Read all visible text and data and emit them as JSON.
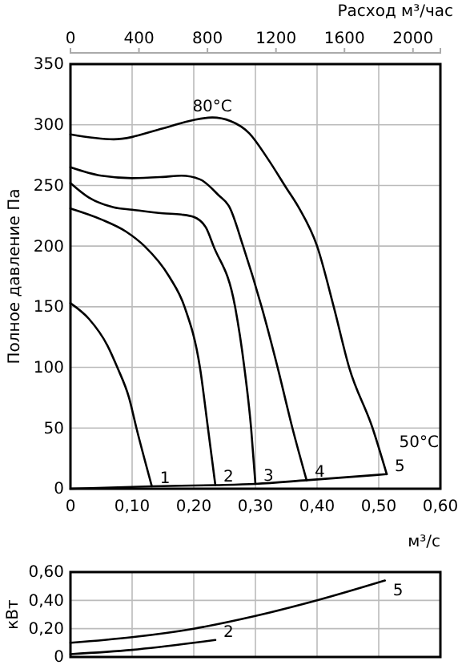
{
  "chart_data": [
    {
      "type": "line",
      "xlabel": "м³/с",
      "ylabel": "Полное давление Па",
      "x2label": "Расход м³/час",
      "xlim": [
        0,
        0.6
      ],
      "xticks": [
        0,
        {
          "value": 0.1,
          "label": "0,10"
        },
        {
          "value": 0.2,
          "label": "0,20"
        },
        {
          "value": 0.3,
          "label": "0,30"
        },
        {
          "value": 0.4,
          "label": "0,40"
        },
        {
          "value": 0.5,
          "label": "0,50"
        },
        {
          "value": 0.6,
          "label": "0,60"
        }
      ],
      "ylim": [
        0,
        350
      ],
      "yticks": [
        0,
        50,
        100,
        150,
        200,
        250,
        300,
        350
      ],
      "x2lim": [
        0,
        2160
      ],
      "x2ticks": [
        0,
        400,
        800,
        1200,
        1600,
        2000
      ],
      "grid": true,
      "marker": "none",
      "line_style": "solid",
      "series": [
        {
          "name": "1",
          "color": "#000000",
          "x": [
            0,
            0.03,
            0.06,
            0.076,
            0.095,
            0.107,
            0.132
          ],
          "values": [
            153,
            140,
            118,
            100,
            75,
            50,
            2
          ]
        },
        {
          "name": "2",
          "color": "#000000",
          "x": [
            0,
            0.05,
            0.09,
            0.12,
            0.16,
            0.185,
            0.21,
            0.223,
            0.235
          ],
          "values": [
            231,
            222,
            212,
            200,
            175,
            150,
            100,
            50,
            3
          ]
        },
        {
          "name": "3",
          "color": "#000000",
          "x": [
            0,
            0.03,
            0.07,
            0.1,
            0.15,
            0.18,
            0.2,
            0.22,
            0.232,
            0.267,
            0.282,
            0.293,
            0.3
          ],
          "values": [
            252,
            240,
            232,
            230,
            227,
            226,
            224,
            215,
            200,
            150,
            100,
            50,
            4
          ]
        },
        {
          "name": "4",
          "color": "#000000",
          "x": [
            0,
            0.05,
            0.1,
            0.15,
            0.18,
            0.21,
            0.24,
            0.258,
            0.28,
            0.31,
            0.336,
            0.36,
            0.383
          ],
          "values": [
            265,
            258,
            256,
            257,
            258,
            255,
            242,
            232,
            200,
            150,
            100,
            50,
            7
          ]
        },
        {
          "name": "5",
          "color": "#000000",
          "x": [
            0,
            0.07,
            0.15,
            0.2,
            0.23,
            0.26,
            0.29,
            0.32,
            0.35,
            0.37,
            0.4,
            0.427,
            0.452,
            0.49,
            0.513
          ],
          "values": [
            292,
            288,
            297,
            304,
            306,
            303,
            293,
            272,
            248,
            232,
            200,
            150,
            100,
            50,
            12
          ]
        },
        {
          "color": "#000000",
          "x": [
            0,
            0.132,
            0.235,
            0.3,
            0.383,
            0.513
          ],
          "values": [
            0,
            2,
            3,
            4,
            7,
            12
          ]
        }
      ],
      "annotations": [
        {
          "text": "80°C",
          "x": 0.23,
          "y": 306
        },
        "50°C"
      ]
    },
    {
      "type": "line",
      "ylabel": "кВт",
      "xlim": [
        0,
        0.6
      ],
      "xticks": [
        0,
        0.1,
        0.2,
        0.3,
        0.4,
        0.5,
        0.6
      ],
      "ylim": [
        0,
        0.6
      ],
      "yticks": [
        0,
        {
          "value": 0.2,
          "label": "0,20"
        },
        {
          "value": 0.4,
          "label": "0,40"
        },
        {
          "value": 0.6,
          "label": "0,60"
        }
      ],
      "tick_labels": "y",
      "grid": true,
      "marker": "none",
      "line_style": "solid",
      "series": [
        {
          "name": "5",
          "color": "#000000",
          "x": [
            0,
            0.1,
            0.2,
            0.3,
            0.4,
            0.51
          ],
          "values": [
            0.1,
            0.14,
            0.2,
            0.29,
            0.4,
            0.54
          ]
        },
        {
          "name": "2",
          "color": "#000000",
          "x": [
            0,
            0.1,
            0.2,
            0.235
          ],
          "values": [
            0.02,
            0.05,
            0.1,
            0.12
          ]
        }
      ]
    }
  ]
}
